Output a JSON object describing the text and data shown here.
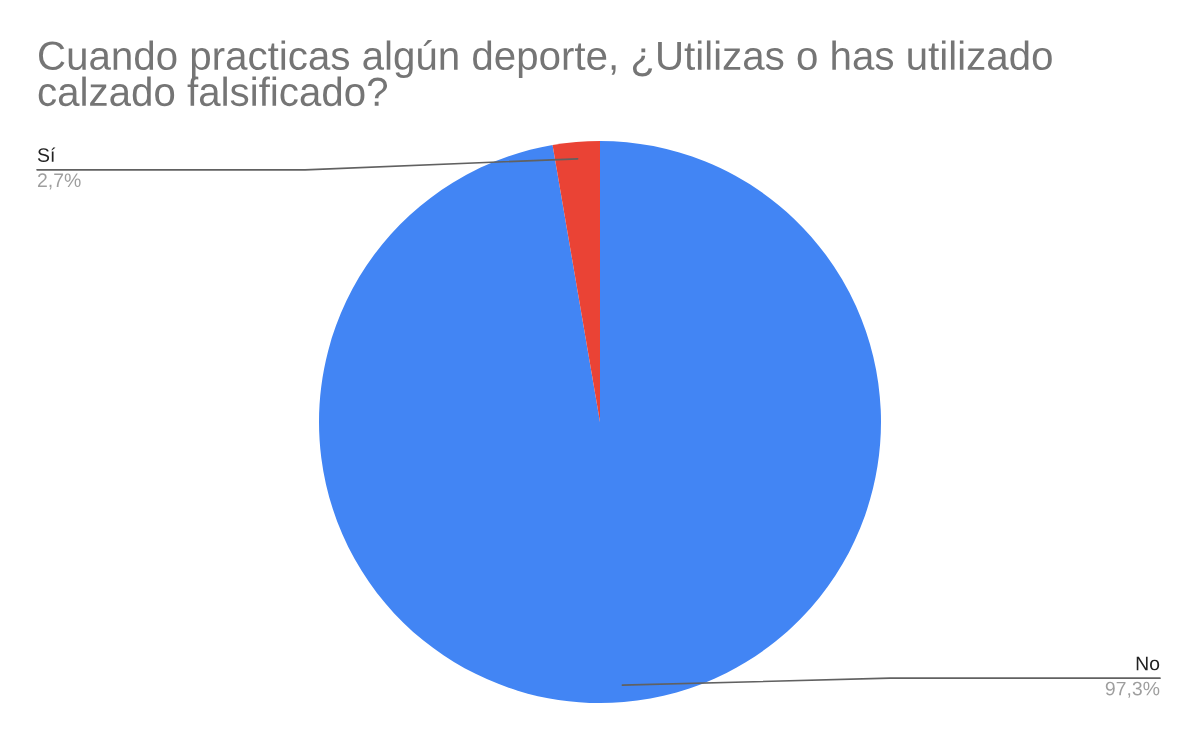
{
  "chart_data": {
    "type": "pie",
    "title": "Cuando practicas algún deporte, ¿Utilizas o has utilizado calzado falsificado?",
    "categories": [
      "No",
      "Sí"
    ],
    "values": [
      97.3,
      2.7
    ],
    "colors": [
      "#4285f4",
      "#ea4335"
    ],
    "value_labels": [
      "97,3%",
      "2,7%"
    ]
  }
}
